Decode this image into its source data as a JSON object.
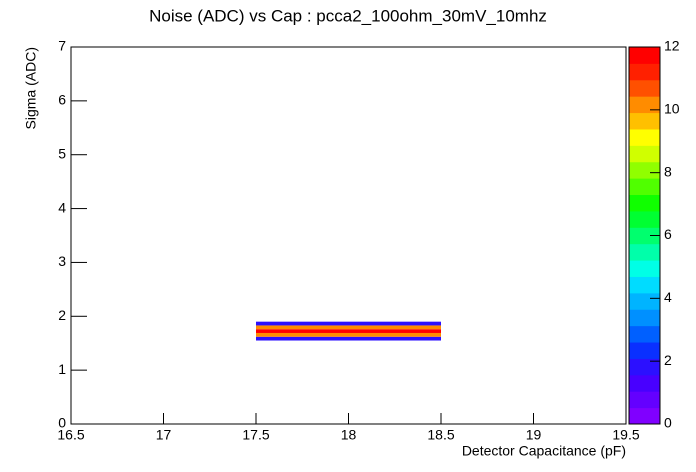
{
  "chart_data": {
    "type": "heatmap",
    "title": "Noise (ADC) vs Cap : pcca2_100ohm_30mV_10mhz",
    "x_label": "Detector Capacitance (pF)",
    "y_label": "Sigma (ADC)",
    "xbins": [
      17.5,
      18.5
    ],
    "ybins": [
      1.55,
      1.62,
      1.69,
      1.76,
      1.83,
      1.9
    ],
    "values": [
      [
        2
      ],
      [
        10
      ],
      [
        12
      ],
      [
        10
      ],
      [
        2
      ]
    ],
    "xlim": [
      16.5,
      19.5
    ],
    "xticks": [
      16.5,
      17,
      17.5,
      18,
      18.5,
      19,
      19.5
    ],
    "ylim": [
      0,
      7
    ],
    "yticks": [
      0,
      1,
      2,
      3,
      4,
      5,
      6,
      7
    ],
    "zlim": [
      0,
      12
    ],
    "zticks": [
      0,
      2,
      4,
      6,
      8,
      10,
      12
    ],
    "palette": [
      "#8000ff",
      "#6400ff",
      "#4800ff",
      "#2c10ff",
      "#0a30ff",
      "#0060ff",
      "#0090ff",
      "#00b4ff",
      "#00dcff",
      "#00ffe6",
      "#00ffaa",
      "#00ff6e",
      "#00ff32",
      "#10ff00",
      "#50ff00",
      "#90ff00",
      "#d0ff00",
      "#ffff00",
      "#ffc000",
      "#ff8c00",
      "#ff5000",
      "#ff2000",
      "#ff0000"
    ]
  }
}
